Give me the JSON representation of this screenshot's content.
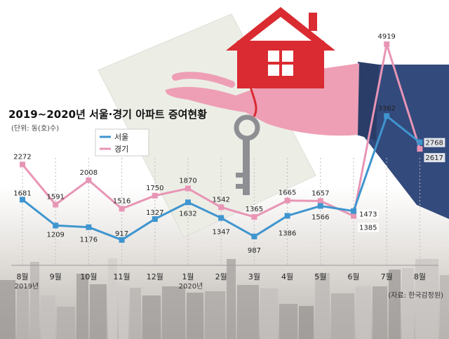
{
  "title": "2019~2020년 서울·경기 아파트 증여현황",
  "unit": "(단위: 동(호)수)",
  "source": "(자료: 한국감정원)",
  "year_labels": [
    "2019년",
    "2020년"
  ],
  "colors": {
    "seoul": "#3f95cf",
    "gyeonggi": "#e895b5",
    "house": "#d92b31",
    "hand": "#ee9fb5",
    "sleeve": "#334a7c",
    "key": "#8d8f93"
  },
  "chart_data": {
    "type": "line",
    "categories": [
      "8월",
      "9월",
      "10월",
      "11월",
      "12월",
      "1월",
      "2월",
      "3월",
      "4월",
      "5월",
      "6월",
      "7월",
      "8월"
    ],
    "series": [
      {
        "name": "서울",
        "values": [
          1681,
          1209,
          1176,
          917,
          1327,
          1632,
          1347,
          987,
          1386,
          1566,
          1473,
          3362,
          2768
        ]
      },
      {
        "name": "경기",
        "values": [
          2272,
          1591,
          2008,
          1516,
          1750,
          1870,
          1542,
          1365,
          1665,
          1657,
          1385,
          4919,
          2617
        ]
      }
    ],
    "title": "2019~2020년 서울·경기 아파트 증여현황",
    "xlabel": "",
    "ylabel": "",
    "legend": "top-left"
  }
}
